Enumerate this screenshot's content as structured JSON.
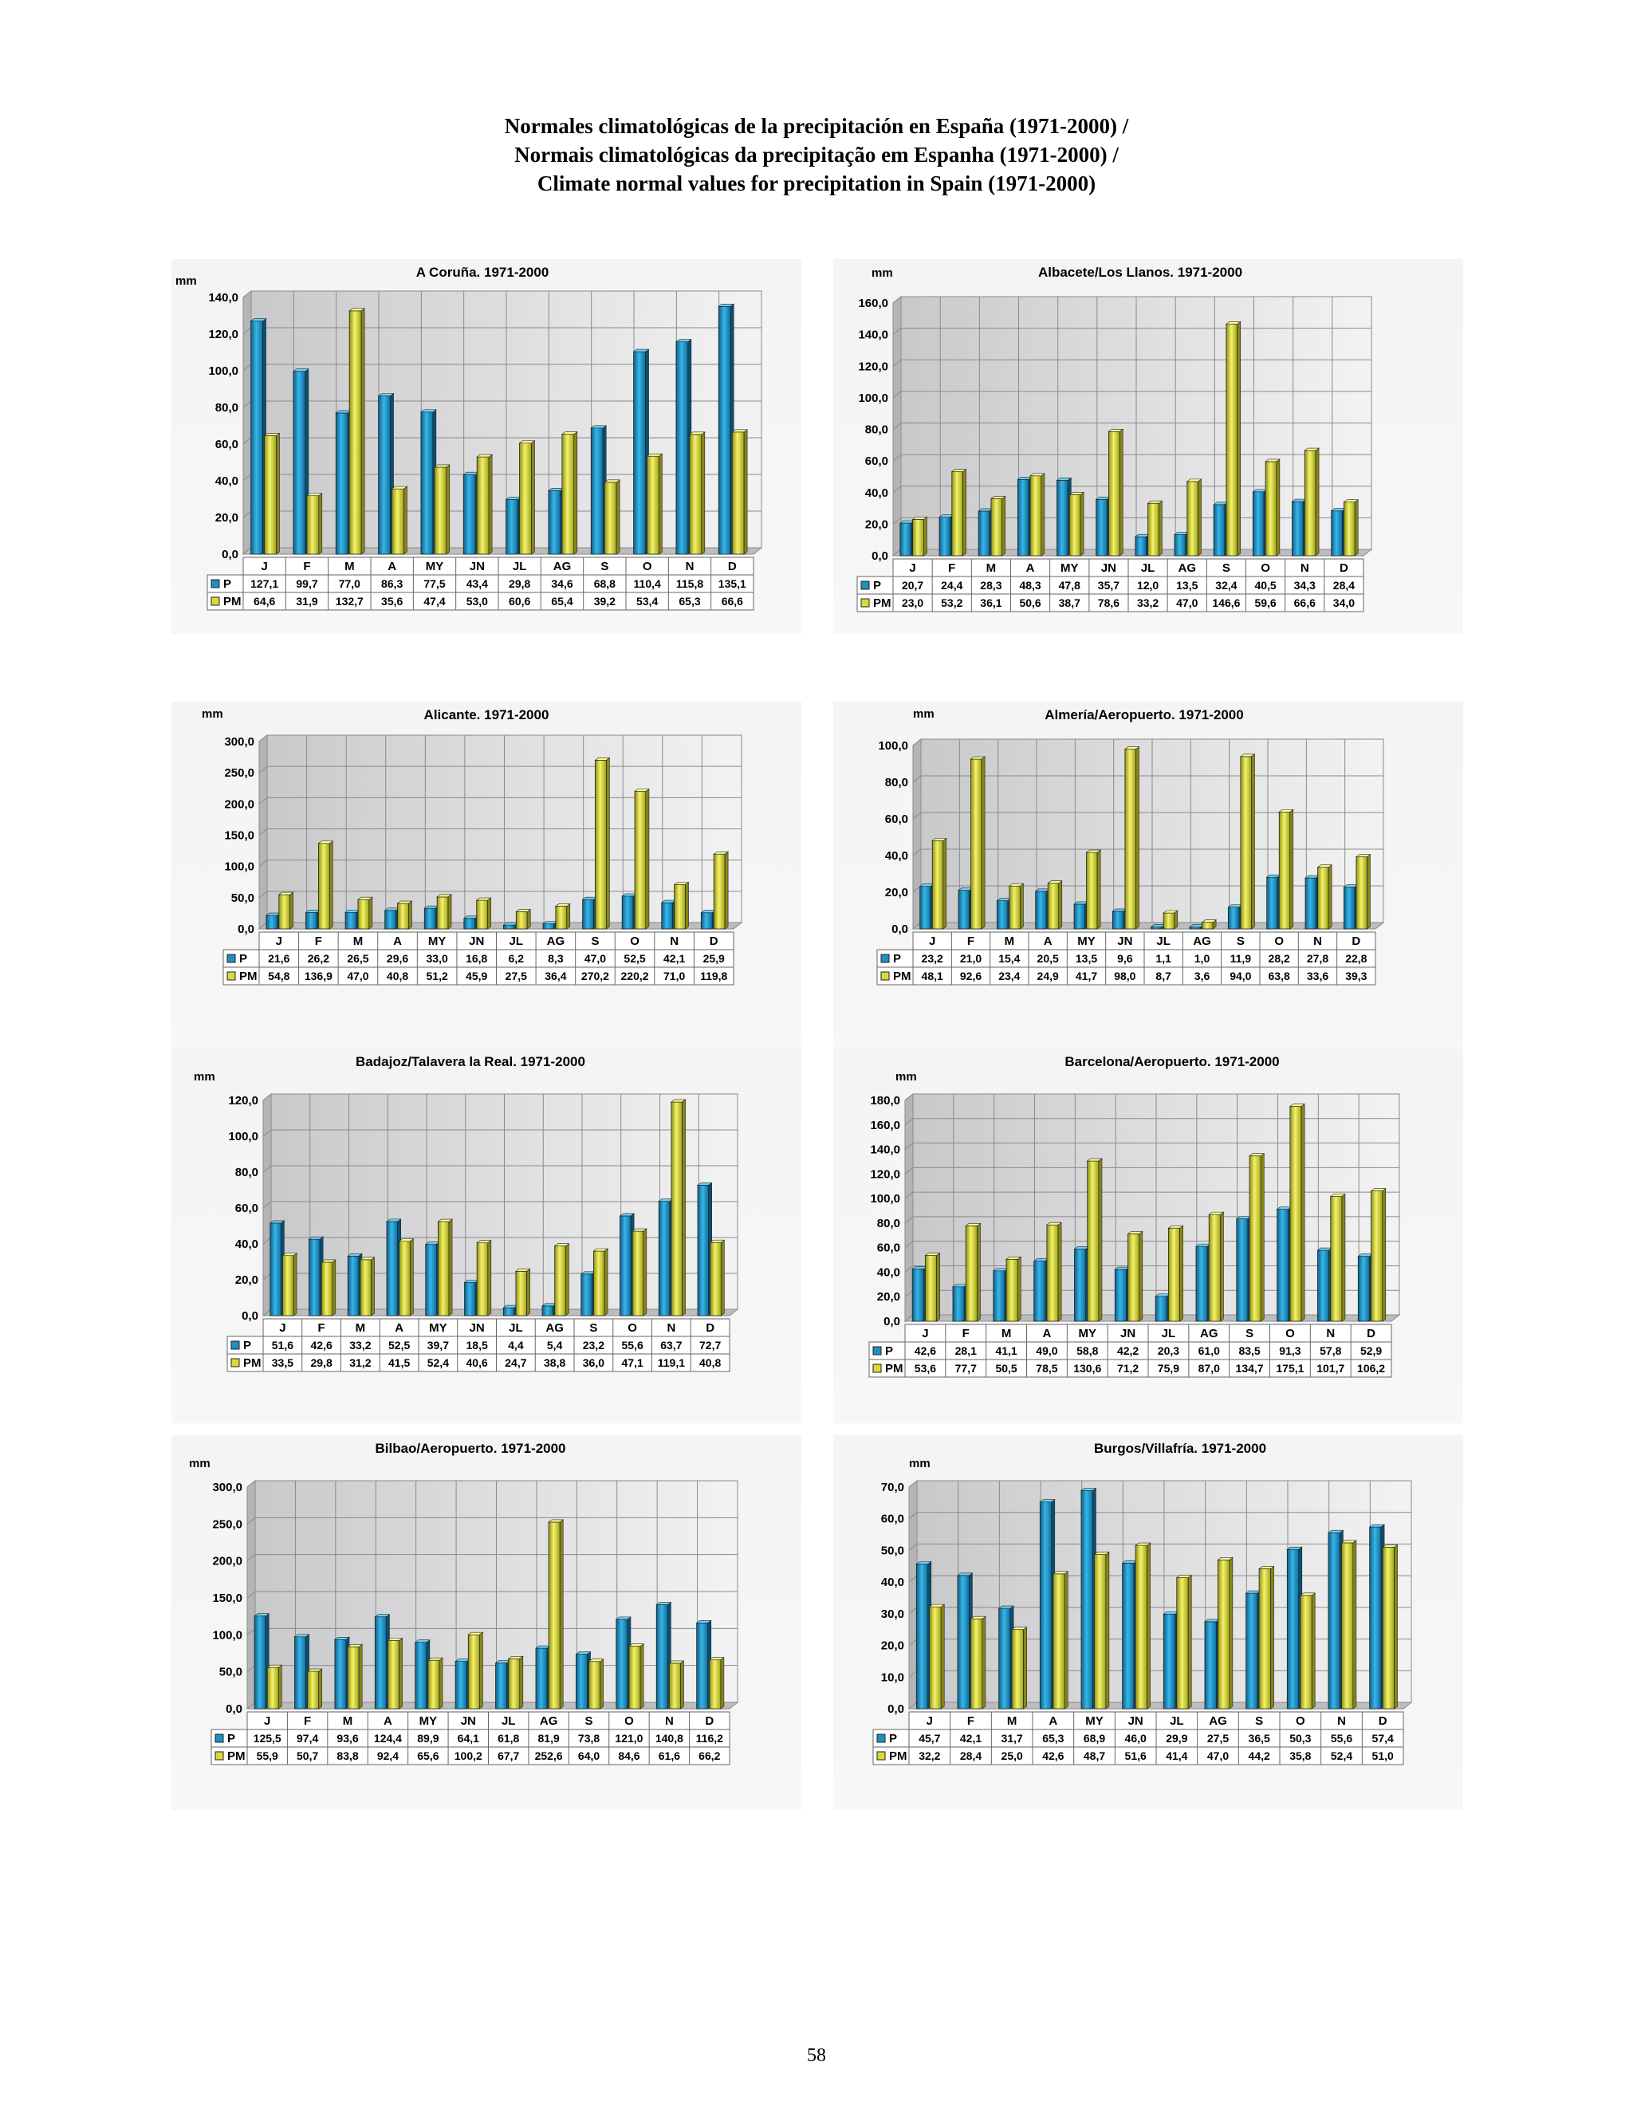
{
  "header": {
    "title_lines": [
      "Normales climatológicas de la precipitación en España (1971-2000) /",
      "Normais climatológicas da precipitação em Espanha (1971-2000) /",
      "Climate normal values for precipitation in Spain (1971-2000)"
    ]
  },
  "page_number": "58",
  "colors": {
    "P": "#1f8fc0",
    "PM": "#d9d93a",
    "grid": "#8a8a8a"
  },
  "chart_data": [
    {
      "type": "bar",
      "title": "A Coruña. 1971-2000",
      "ylabel": "mm",
      "ylim": [
        0,
        140
      ],
      "ytick_step": 20,
      "categories": [
        "J",
        "F",
        "M",
        "A",
        "MY",
        "JN",
        "JL",
        "AG",
        "S",
        "O",
        "N",
        "D"
      ],
      "series": [
        {
          "name": "P",
          "values": [
            127.1,
            99.7,
            77.0,
            86.3,
            77.5,
            43.4,
            29.8,
            34.6,
            68.8,
            110.4,
            115.8,
            135.1
          ],
          "labels": [
            "127,1",
            "99,7",
            "77,0",
            "86,3",
            "77,5",
            "43,4",
            "29,8",
            "34,6",
            "68,8",
            "110,4",
            "115,8",
            "135,1"
          ]
        },
        {
          "name": "PM",
          "values": [
            64.6,
            31.9,
            132.7,
            35.6,
            47.4,
            53.0,
            60.6,
            65.4,
            39.2,
            53.4,
            65.3,
            66.6
          ],
          "labels": [
            "64,6",
            "31,9",
            "132,7",
            "35,6",
            "47,4",
            "53,0",
            "60,6",
            "65,4",
            "39,2",
            "53,4",
            "65,3",
            "66,6"
          ]
        }
      ],
      "ytick_labels": [
        "0,0",
        "20,0",
        "40,0",
        "60,0",
        "80,0",
        "100,0",
        "120,0",
        "140,0"
      ]
    },
    {
      "type": "bar",
      "title": "Albacete/Los Llanos. 1971-2000",
      "ylabel": "mm",
      "ylim": [
        0,
        160
      ],
      "ytick_step": 20,
      "categories": [
        "J",
        "F",
        "M",
        "A",
        "MY",
        "JN",
        "JL",
        "AG",
        "S",
        "O",
        "N",
        "D"
      ],
      "series": [
        {
          "name": "P",
          "values": [
            20.7,
            24.4,
            28.3,
            48.3,
            47.8,
            35.7,
            12.0,
            13.5,
            32.4,
            40.5,
            34.3,
            28.4
          ],
          "labels": [
            "20,7",
            "24,4",
            "28,3",
            "48,3",
            "47,8",
            "35,7",
            "12,0",
            "13,5",
            "32,4",
            "40,5",
            "34,3",
            "28,4"
          ]
        },
        {
          "name": "PM",
          "values": [
            23.0,
            53.2,
            36.1,
            50.6,
            38.7,
            78.6,
            33.2,
            47.0,
            146.6,
            59.6,
            66.6,
            34.0
          ],
          "labels": [
            "23,0",
            "53,2",
            "36,1",
            "50,6",
            "38,7",
            "78,6",
            "33,2",
            "47,0",
            "146,6",
            "59,6",
            "66,6",
            "34,0"
          ]
        }
      ],
      "ytick_labels": [
        "0,0",
        "20,0",
        "40,0",
        "60,0",
        "80,0",
        "100,0",
        "120,0",
        "140,0",
        "160,0"
      ]
    },
    {
      "type": "bar",
      "title": "Alicante. 1971-2000",
      "ylabel": "mm",
      "ylim": [
        0,
        300
      ],
      "ytick_step": 50,
      "categories": [
        "J",
        "F",
        "M",
        "A",
        "MY",
        "JN",
        "JL",
        "AG",
        "S",
        "O",
        "N",
        "D"
      ],
      "series": [
        {
          "name": "P",
          "values": [
            21.6,
            26.2,
            26.5,
            29.6,
            33.0,
            16.8,
            6.2,
            8.3,
            47.0,
            52.5,
            42.1,
            25.9
          ],
          "labels": [
            "21,6",
            "26,2",
            "26,5",
            "29,6",
            "33,0",
            "16,8",
            "6,2",
            "8,3",
            "47,0",
            "52,5",
            "42,1",
            "25,9"
          ]
        },
        {
          "name": "PM",
          "values": [
            54.8,
            136.9,
            47.0,
            40.8,
            51.2,
            45.9,
            27.5,
            36.4,
            270.2,
            220.2,
            71.0,
            119.8
          ],
          "labels": [
            "54,8",
            "136,9",
            "47,0",
            "40,8",
            "51,2",
            "45,9",
            "27,5",
            "36,4",
            "270,2",
            "220,2",
            "71,0",
            "119,8"
          ]
        }
      ],
      "ytick_labels": [
        "0,0",
        "50,0",
        "100,0",
        "150,0",
        "200,0",
        "250,0",
        "300,0"
      ]
    },
    {
      "type": "bar",
      "title": "Almería/Aeropuerto. 1971-2000",
      "ylabel": "mm",
      "ylim": [
        0,
        100
      ],
      "ytick_step": 20,
      "categories": [
        "J",
        "F",
        "M",
        "A",
        "MY",
        "JN",
        "JL",
        "AG",
        "S",
        "O",
        "N",
        "D"
      ],
      "series": [
        {
          "name": "P",
          "values": [
            23.2,
            21.0,
            15.4,
            20.5,
            13.5,
            9.6,
            1.1,
            1.0,
            11.9,
            28.2,
            27.8,
            22.8
          ],
          "labels": [
            "23,2",
            "21,0",
            "15,4",
            "20,5",
            "13,5",
            "9,6",
            "1,1",
            "1,0",
            "11,9",
            "28,2",
            "27,8",
            "22,8"
          ]
        },
        {
          "name": "PM",
          "values": [
            48.1,
            92.6,
            23.4,
            24.9,
            41.7,
            98.0,
            8.7,
            3.6,
            94.0,
            63.8,
            33.6,
            39.3
          ],
          "labels": [
            "48,1",
            "92,6",
            "23,4",
            "24,9",
            "41,7",
            "98,0",
            "8,7",
            "3,6",
            "94,0",
            "63,8",
            "33,6",
            "39,3"
          ]
        }
      ],
      "ytick_labels": [
        "0,0",
        "20,0",
        "40,0",
        "60,0",
        "80,0",
        "100,0"
      ]
    },
    {
      "type": "bar",
      "title": "Badajoz/Talavera la Real. 1971-2000",
      "ylabel": "mm",
      "ylim": [
        0,
        120
      ],
      "ytick_step": 20,
      "categories": [
        "J",
        "F",
        "M",
        "A",
        "MY",
        "JN",
        "JL",
        "AG",
        "S",
        "O",
        "N",
        "D"
      ],
      "series": [
        {
          "name": "P",
          "values": [
            51.6,
            42.6,
            33.2,
            52.5,
            39.7,
            18.5,
            4.4,
            5.4,
            23.2,
            55.6,
            63.7,
            72.7
          ],
          "labels": [
            "51,6",
            "42,6",
            "33,2",
            "52,5",
            "39,7",
            "18,5",
            "4,4",
            "5,4",
            "23,2",
            "55,6",
            "63,7",
            "72,7"
          ]
        },
        {
          "name": "PM",
          "values": [
            33.5,
            29.8,
            31.2,
            41.5,
            52.4,
            40.6,
            24.7,
            38.8,
            36.0,
            47.1,
            119.1,
            40.8
          ],
          "labels": [
            "33,5",
            "29,8",
            "31,2",
            "41,5",
            "52,4",
            "40,6",
            "24,7",
            "38,8",
            "36,0",
            "47,1",
            "119,1",
            "40,8"
          ]
        }
      ],
      "ytick_labels": [
        "0,0",
        "20,0",
        "40,0",
        "60,0",
        "80,0",
        "100,0",
        "120,0"
      ]
    },
    {
      "type": "bar",
      "title": "Barcelona/Aeropuerto. 1971-2000",
      "ylabel": "mm",
      "ylim": [
        0,
        180
      ],
      "ytick_step": 20,
      "categories": [
        "J",
        "F",
        "M",
        "A",
        "MY",
        "JN",
        "JL",
        "AG",
        "S",
        "O",
        "N",
        "D"
      ],
      "series": [
        {
          "name": "P",
          "values": [
            42.6,
            28.1,
            41.1,
            49.0,
            58.8,
            42.2,
            20.3,
            61.0,
            83.5,
            91.3,
            57.8,
            52.9
          ],
          "labels": [
            "42,6",
            "28,1",
            "41,1",
            "49,0",
            "58,8",
            "42,2",
            "20,3",
            "61,0",
            "83,5",
            "91,3",
            "57,8",
            "52,9"
          ]
        },
        {
          "name": "PM",
          "values": [
            53.6,
            77.7,
            50.5,
            78.5,
            130.6,
            71.2,
            75.9,
            87.0,
            134.7,
            175.1,
            101.7,
            106.2
          ],
          "labels": [
            "53,6",
            "77,7",
            "50,5",
            "78,5",
            "130,6",
            "71,2",
            "75,9",
            "87,0",
            "134,7",
            "175,1",
            "101,7",
            "106,2"
          ]
        }
      ],
      "ytick_labels": [
        "0,0",
        "20,0",
        "40,0",
        "60,0",
        "80,0",
        "100,0",
        "120,0",
        "140,0",
        "160,0",
        "180,0"
      ]
    },
    {
      "type": "bar",
      "title": "Bilbao/Aeropuerto. 1971-2000",
      "ylabel": "mm",
      "ylim": [
        0,
        300
      ],
      "ytick_step": 50,
      "categories": [
        "J",
        "F",
        "M",
        "A",
        "MY",
        "JN",
        "JL",
        "AG",
        "S",
        "O",
        "N",
        "D"
      ],
      "series": [
        {
          "name": "P",
          "values": [
            125.5,
            97.4,
            93.6,
            124.4,
            89.9,
            64.1,
            61.8,
            81.9,
            73.8,
            121.0,
            140.8,
            116.2
          ],
          "labels": [
            "125,5",
            "97,4",
            "93,6",
            "124,4",
            "89,9",
            "64,1",
            "61,8",
            "81,9",
            "73,8",
            "121,0",
            "140,8",
            "116,2"
          ]
        },
        {
          "name": "PM",
          "values": [
            55.9,
            50.7,
            83.8,
            92.4,
            65.6,
            100.2,
            67.7,
            252.6,
            64.0,
            84.6,
            61.6,
            66.2
          ],
          "labels": [
            "55,9",
            "50,7",
            "83,8",
            "92,4",
            "65,6",
            "100,2",
            "67,7",
            "252,6",
            "64,0",
            "84,6",
            "61,6",
            "66,2"
          ]
        }
      ],
      "ytick_labels": [
        "0,0",
        "50,0",
        "100,0",
        "150,0",
        "200,0",
        "250,0",
        "300,0"
      ]
    },
    {
      "type": "bar",
      "title": "Burgos/Villafría. 1971-2000",
      "ylabel": "mm",
      "ylim": [
        0,
        70
      ],
      "ytick_step": 10,
      "categories": [
        "J",
        "F",
        "M",
        "A",
        "MY",
        "JN",
        "JL",
        "AG",
        "S",
        "O",
        "N",
        "D"
      ],
      "series": [
        {
          "name": "P",
          "values": [
            45.7,
            42.1,
            31.7,
            65.3,
            68.9,
            46.0,
            29.9,
            27.5,
            36.5,
            50.3,
            55.6,
            57.4
          ],
          "labels": [
            "45,7",
            "42,1",
            "31,7",
            "65,3",
            "68,9",
            "46,0",
            "29,9",
            "27,5",
            "36,5",
            "50,3",
            "55,6",
            "57,4"
          ]
        },
        {
          "name": "PM",
          "values": [
            32.2,
            28.4,
            25.0,
            42.6,
            48.7,
            51.6,
            41.4,
            47.0,
            44.2,
            35.8,
            52.4,
            51.0
          ],
          "labels": [
            "32,2",
            "28,4",
            "25,0",
            "42,6",
            "48,7",
            "51,6",
            "41,4",
            "47,0",
            "44,2",
            "35,8",
            "52,4",
            "51,0"
          ]
        }
      ],
      "ytick_labels": [
        "0,0",
        "10,0",
        "20,0",
        "30,0",
        "40,0",
        "50,0",
        "60,0",
        "70,0"
      ]
    }
  ]
}
